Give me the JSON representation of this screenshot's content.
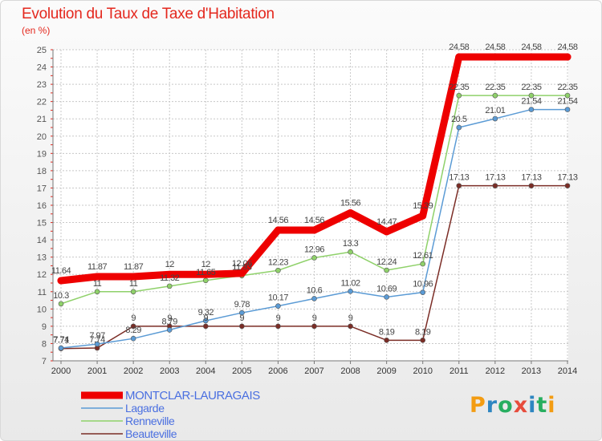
{
  "header": {
    "title": "Evolution du Taux de Taxe d'Habitation",
    "unit": "(en %)"
  },
  "logo": {
    "text": "Proxiti",
    "letters": [
      "P",
      "r",
      "o",
      "x",
      "i",
      "t",
      "i"
    ],
    "colors": [
      "#f39c12",
      "#2e86c1",
      "#27ae60",
      "#e74c3c",
      "#2e86c1",
      "#27ae60",
      "#f39c12"
    ]
  },
  "chart_data": {
    "type": "line",
    "title": "Evolution du Taux de Taxe d'Habitation",
    "subtitle": "(en %)",
    "x": [
      "2000",
      "2001",
      "2002",
      "2003",
      "2004",
      "2005",
      "2006",
      "2007",
      "2008",
      "2009",
      "2010",
      "2011",
      "2012",
      "2013",
      "2014"
    ],
    "ylim": [
      7,
      25
    ],
    "yticks": [
      "7",
      "8",
      "9",
      "10",
      "11",
      "12",
      "13",
      "14",
      "15",
      "16",
      "17",
      "18",
      "19",
      "20",
      "21",
      "22",
      "23",
      "24",
      "25"
    ],
    "grid": true,
    "legend_position": "bottom-left",
    "series": [
      {
        "name": "MONTCLAR-LAURAGAIS",
        "color": "#ee0000",
        "values": [
          11.64,
          11.87,
          11.87,
          12,
          12,
          12.06,
          14.56,
          14.56,
          15.56,
          14.47,
          15.39,
          24.58,
          24.58,
          24.58,
          24.58
        ],
        "labels": [
          "11.64",
          "11.87",
          "11.87",
          "12",
          "12",
          "12.06",
          "14.56",
          "14.56",
          "15.56",
          "14.47",
          "15.39",
          "24.58",
          "24.58",
          "24.58",
          "24.58"
        ]
      },
      {
        "name": "Lagarde",
        "color": "#5b9bd5",
        "values": [
          7.74,
          7.97,
          8.29,
          8.79,
          9.32,
          9.78,
          10.17,
          10.6,
          11.02,
          10.69,
          10.96,
          20.5,
          21.01,
          21.54,
          21.54
        ],
        "labels": [
          "7.74",
          "7.97",
          "8.29",
          "8.79",
          "9.32",
          "9.78",
          "10.17",
          "10.6",
          "11.02",
          "10.69",
          "10.96",
          "20.5",
          "21.01",
          "21.54",
          "21.54"
        ]
      },
      {
        "name": "Renneville",
        "color": "#8fd16a",
        "values": [
          10.3,
          11,
          11,
          11.32,
          11.65,
          11.93,
          12.23,
          12.96,
          13.3,
          12.24,
          12.61,
          22.35,
          22.35,
          22.35,
          22.35
        ],
        "labels": [
          "10.3",
          "11",
          "11",
          "11.32",
          "11.65",
          "11.93",
          "12.23",
          "12.96",
          "13.3",
          "12.24",
          "12.61",
          "22.35",
          "22.35",
          "22.35",
          "22.35"
        ]
      },
      {
        "name": "Beauteville",
        "color": "#7b2d26",
        "values": [
          7.71,
          7.74,
          9,
          9,
          9,
          9,
          9,
          9,
          9,
          8.19,
          8.19,
          17.13,
          17.13,
          17.13,
          17.13
        ],
        "labels": [
          "7.71",
          "7.74",
          "9",
          "9",
          "9",
          "9",
          "9",
          "9",
          "9",
          "8.19",
          "8.19",
          "17.13",
          "17.13",
          "17.13",
          "17.13"
        ]
      }
    ]
  }
}
